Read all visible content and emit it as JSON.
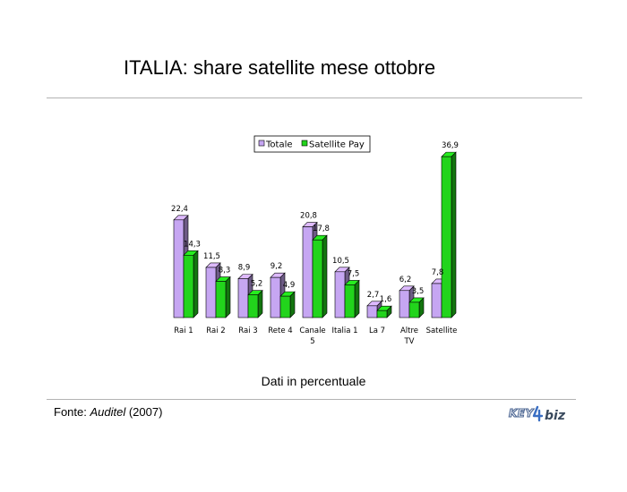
{
  "slide": {
    "title": "ITALIA: share satellite mese ottobre",
    "subtitle": "Dati in percentuale",
    "source_prefix": "Fonte: ",
    "source_name": "Auditel",
    "source_year": " (2007)",
    "logo_text_left": "KEY",
    "logo_text_right": "biz"
  },
  "chart_data": {
    "type": "bar",
    "categories": [
      "Rai 1",
      "Rai 2",
      "Rai 3",
      "Rete 4",
      "Canale 5",
      "Italia 1",
      "La 7",
      "Altre TV",
      "Satellite"
    ],
    "category_lines": [
      [
        "Rai 1"
      ],
      [
        "Rai 2"
      ],
      [
        "Rai 3"
      ],
      [
        "Rete 4"
      ],
      [
        "Canale",
        "5"
      ],
      [
        "Italia 1"
      ],
      [
        "La 7"
      ],
      [
        "Altre",
        "TV"
      ],
      [
        "Satellite"
      ]
    ],
    "series": [
      {
        "name": "Totale",
        "values": [
          22.4,
          11.5,
          8.9,
          9.2,
          20.8,
          10.5,
          2.7,
          6.2,
          7.8
        ],
        "labels": [
          "22,4",
          "11,5",
          "8,9",
          "9,2",
          "20,8",
          "10,5",
          "2,7",
          "6,2",
          "7,8"
        ],
        "color": "#c6a6f2"
      },
      {
        "name": "Satellite Pay",
        "values": [
          14.3,
          8.3,
          5.2,
          4.9,
          17.8,
          7.5,
          1.6,
          3.5,
          36.9
        ],
        "labels": [
          "14,3",
          "8,3",
          "5,2",
          "4,9",
          "17,8",
          "7,5",
          "1,6",
          "3,5",
          "36,9"
        ],
        "color": "#22d41c"
      }
    ],
    "ylim": [
      0,
      40
    ],
    "grid": false,
    "legend_position": "top",
    "three_d": true
  }
}
